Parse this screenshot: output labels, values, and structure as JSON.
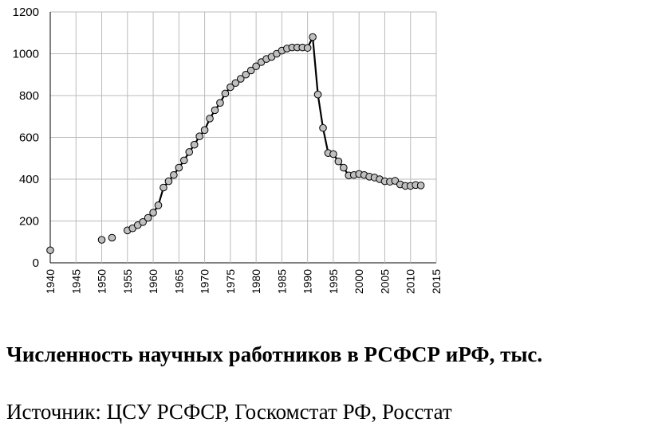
{
  "title": "Численность научных работников в РСФСР иРФ, тыс.",
  "source": "Источник: ЦСУ РСФСР, Госкомстат РФ, Росстат",
  "chart_data": {
    "type": "line",
    "xlim": [
      1940,
      2015
    ],
    "ylim": [
      0,
      1200
    ],
    "x_ticks": [
      1940,
      1945,
      1950,
      1955,
      1960,
      1965,
      1970,
      1975,
      1980,
      1985,
      1990,
      1995,
      2000,
      2005,
      2010,
      2015
    ],
    "y_ticks": [
      0,
      200,
      400,
      600,
      800,
      1000,
      1200
    ],
    "grid": true,
    "legend": "none",
    "line_color": "#000000",
    "marker_fill": "#c0c0c0",
    "series": [
      {
        "x": [
          1940,
          1950,
          1952,
          1955,
          1956,
          1957,
          1958,
          1959,
          1960,
          1961,
          1962,
          1963,
          1964,
          1965,
          1966,
          1967,
          1968,
          1969,
          1970,
          1971,
          1972,
          1973,
          1974,
          1975,
          1976,
          1977,
          1978,
          1979,
          1980,
          1981,
          1982,
          1983,
          1984,
          1985,
          1986,
          1987,
          1988,
          1989,
          1990,
          1991,
          1992,
          1993,
          1994,
          1995,
          1996,
          1997,
          1998,
          1999,
          2000,
          2001,
          2002,
          2003,
          2004,
          2005,
          2006,
          2007,
          2008,
          2009,
          2010,
          2011,
          2012
        ],
        "y": [
          60,
          110,
          120,
          155,
          165,
          180,
          195,
          215,
          240,
          275,
          360,
          390,
          420,
          455,
          490,
          530,
          565,
          605,
          635,
          690,
          730,
          765,
          810,
          840,
          860,
          880,
          900,
          920,
          940,
          960,
          975,
          985,
          1000,
          1015,
          1025,
          1030,
          1030,
          1030,
          1028,
          1080,
          805,
          645,
          525,
          520,
          485,
          455,
          418,
          420,
          425,
          420,
          412,
          408,
          400,
          390,
          388,
          392,
          375,
          368,
          368,
          372,
          370
        ],
        "connected_from_index": 3
      }
    ]
  }
}
